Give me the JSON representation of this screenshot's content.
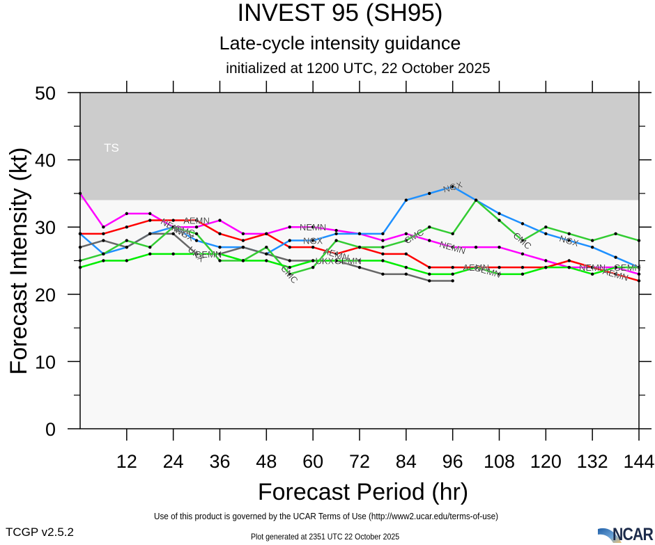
{
  "chart_data": {
    "type": "line",
    "title": "INVEST 95 (SH95)",
    "subtitle": "Late-cycle intensity guidance",
    "subsubtitle": "initialized at 1200 UTC, 22 October 2025",
    "xlabel": "Forecast Period (hr)",
    "ylabel": "Forecast Intensity (kt)",
    "xlim": [
      0,
      144
    ],
    "ylim": [
      0,
      50
    ],
    "x_ticks": [
      12,
      24,
      36,
      48,
      60,
      72,
      84,
      96,
      108,
      120,
      132,
      144
    ],
    "y_ticks": [
      0,
      10,
      20,
      30,
      40,
      50
    ],
    "grid": false,
    "bands": [
      {
        "label": "TS",
        "from": 34,
        "to": 50,
        "color": "#cccccc"
      },
      {
        "label": "",
        "from": 0,
        "to": 34,
        "color": "#f8f8f8"
      }
    ],
    "x": [
      0,
      6,
      12,
      18,
      24,
      30,
      36,
      42,
      48,
      54,
      60,
      66,
      72,
      78,
      84,
      90,
      96,
      102,
      108,
      114,
      120,
      126,
      132,
      138,
      144
    ],
    "series": [
      {
        "name": "NEMN",
        "color": "#ff00ff",
        "label_at": [
          24,
          60,
          96,
          132
        ],
        "values": [
          35,
          30,
          32,
          32,
          30,
          30,
          31,
          29,
          29,
          30,
          30,
          29.5,
          29,
          28,
          29,
          28,
          27,
          27,
          27,
          26,
          25,
          24,
          24,
          24,
          23
        ]
      },
      {
        "name": "AEMN",
        "color": "#ff0000",
        "label_at": [
          30,
          66,
          102,
          138
        ],
        "values": [
          29,
          29,
          30,
          31,
          31,
          31,
          29,
          28,
          29,
          27,
          27,
          26,
          27,
          26,
          26,
          24,
          24,
          24,
          24,
          24,
          24,
          25,
          24,
          23,
          22
        ]
      },
      {
        "name": "NGX",
        "color": "#1e90ff",
        "label_at": [
          27,
          60,
          96,
          126
        ],
        "values": [
          29,
          26,
          27,
          29,
          30,
          28,
          27,
          27,
          26,
          28,
          28,
          29,
          29,
          29,
          34,
          35,
          36,
          34,
          32,
          30.5,
          29,
          28,
          27,
          25.5,
          24
        ]
      },
      {
        "name": "UKX",
        "color": "#666666",
        "label_at": [
          30,
          63
        ],
        "values": [
          27,
          28,
          27,
          29,
          29,
          26,
          26,
          27,
          26,
          25,
          25,
          25,
          24,
          23,
          23,
          22,
          22,
          null,
          null,
          null,
          null,
          null,
          null,
          null,
          null
        ]
      },
      {
        "name": "CMC",
        "color": "#33cc33",
        "label_at": [
          27,
          54,
          86,
          114
        ],
        "values": [
          25,
          26,
          28,
          27,
          30,
          29,
          25,
          25,
          27,
          23,
          24,
          28,
          27,
          27,
          28,
          30,
          29,
          34,
          31,
          28,
          30,
          29,
          28,
          29,
          28
        ]
      },
      {
        "name": "GEMN",
        "color": "#00ee00",
        "label_at": [
          33,
          69,
          105,
          141
        ],
        "values": [
          24,
          25,
          25,
          26,
          26,
          26,
          26,
          25,
          25,
          24,
          25,
          25,
          25,
          25,
          24,
          23,
          23,
          24,
          23,
          23,
          24,
          24,
          23,
          24,
          24
        ]
      }
    ]
  },
  "footer": {
    "terms": "Use of this product is governed by the UCAR Terms of Use (http://www2.ucar.edu/terms-of-use)",
    "version": "TCGP v2.5.2",
    "generated": "Plot generated at 2351 UTC   22 October 2025",
    "logo": "NCAR"
  }
}
